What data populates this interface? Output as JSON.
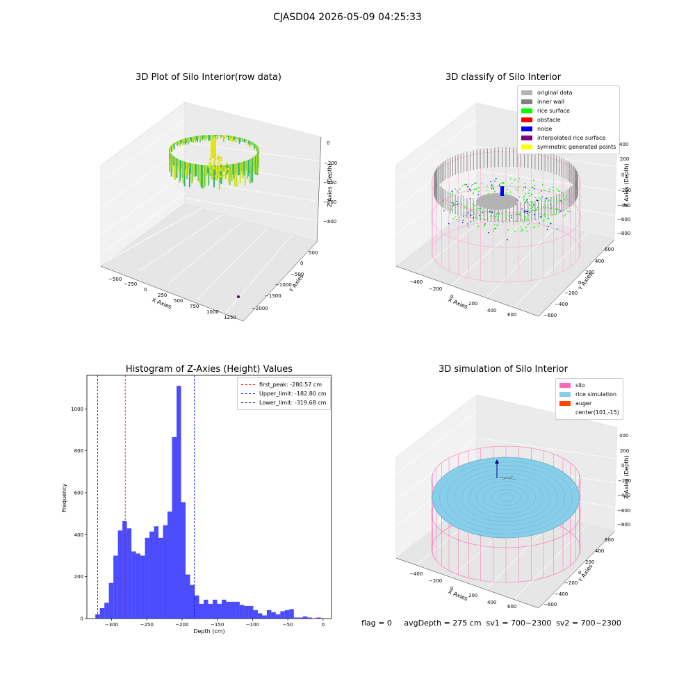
{
  "figure_title": "CJASD04 2026-05-09 04:25:33",
  "footer": "flag = 0     avgDepth = 275 cm  sv1 = 700~2300  sv2 = 700~2300",
  "plot1": {
    "title": "3D Plot of Silo Interior(row data)",
    "xlabel": "X Axies",
    "ylabel": "Y Axies",
    "zlabel": "Z Axies (Depth)",
    "xticks": [
      "−500",
      "−250",
      "0",
      "250",
      "500",
      "750",
      "1000",
      "1250"
    ],
    "yticks": [
      "500",
      "0",
      "−500",
      "−1000",
      "−1500",
      "−2000"
    ],
    "zticks": [
      "0",
      "−200",
      "−400",
      "−600",
      "−800"
    ]
  },
  "plot2": {
    "title": "3D classify of Silo Interior",
    "xlabel": "X Axies",
    "ylabel": "Y Axies",
    "zlabel": "Z Axies (Depth)",
    "xticks": [
      "−400",
      "−200",
      "0",
      "200",
      "400",
      "600"
    ],
    "yticks": [
      "600",
      "400",
      "200",
      "0",
      "−200",
      "−400",
      "−600"
    ],
    "zticks": [
      "400",
      "200",
      "0",
      "−200",
      "−400",
      "−600",
      "−800"
    ],
    "legend": [
      {
        "label": "original data",
        "color": "#b3b3b3"
      },
      {
        "label": "inner wall",
        "color": "#808080"
      },
      {
        "label": "rice surface",
        "color": "#00ff00"
      },
      {
        "label": "obstacle",
        "color": "#ff0000"
      },
      {
        "label": "noise",
        "color": "#0000ff"
      },
      {
        "label": "interpolated rice surface",
        "color": "#800080"
      },
      {
        "label": "symmetric generated points",
        "color": "#ffff00"
      }
    ]
  },
  "plot4": {
    "title": "3D simulation of Silo Interior",
    "xlabel": "X Axies",
    "ylabel": "Y Axies",
    "zlabel": "Z Axies (Depth)",
    "xticks": [
      "−400",
      "−200",
      "0",
      "200",
      "400",
      "600"
    ],
    "yticks": [
      "600",
      "400",
      "200",
      "0",
      "−200",
      "−400",
      "−600"
    ],
    "zticks": [
      "400",
      "200",
      "0",
      "−200",
      "−400",
      "−600",
      "−800"
    ],
    "legend": [
      {
        "label": "silo",
        "color": "#ff69b4"
      },
      {
        "label": "rice simulation",
        "color": "#87ceeb"
      },
      {
        "label": "auger",
        "color": "#ff4500"
      },
      {
        "label": "center(101,-15)",
        "color": ""
      }
    ]
  },
  "chart_data": {
    "type": "bar",
    "title": "Histogram of Z-Axies (Height) Values",
    "xlabel": "Depth (cm)",
    "ylabel": "Frequency",
    "xlim": [
      -335,
      12
    ],
    "ylim": [
      0,
      1160
    ],
    "xticks": [
      -300,
      -250,
      -200,
      -150,
      -100,
      -50,
      0
    ],
    "yticks": [
      0,
      200,
      400,
      600,
      800,
      1000
    ],
    "bin_width": 6.4,
    "bin_start": -323,
    "values": [
      20,
      50,
      75,
      170,
      300,
      420,
      465,
      430,
      320,
      310,
      300,
      385,
      415,
      440,
      385,
      445,
      510,
      865,
      1110,
      555,
      210,
      160,
      110,
      70,
      90,
      70,
      90,
      70,
      90,
      80,
      80,
      80,
      65,
      60,
      60,
      40,
      25,
      15,
      40,
      30,
      20,
      35,
      40,
      45,
      5,
      5,
      10,
      5,
      0,
      5
    ],
    "color": "#0000ff",
    "lines": [
      {
        "label": "first_peak: -280.57 cm",
        "x": -280.57,
        "color": "#ff0000"
      },
      {
        "label": "Upper_limit: -182.80 cm",
        "x": -182.8,
        "color": "#0000ff"
      },
      {
        "label": "Lower_limit: -319.68 cm",
        "x": -319.68,
        "color": "#0000ff"
      }
    ]
  }
}
